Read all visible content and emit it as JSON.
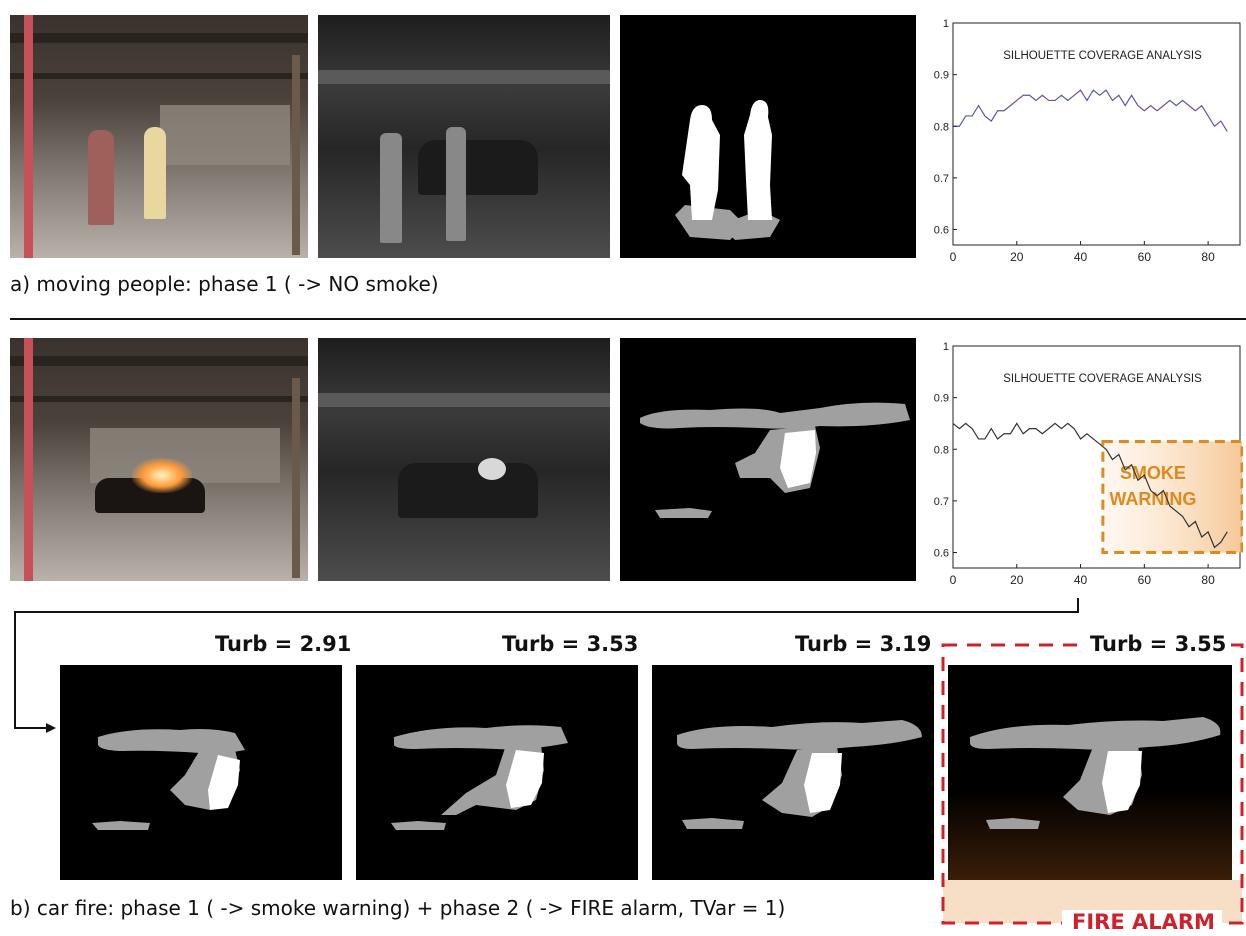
{
  "rows": {
    "a": {
      "caption": "a) moving people: phase 1 ( -> NO smoke)"
    },
    "b": {
      "caption": "b) car fire: phase 1 ( -> smoke warning) + phase 2 ( -> FIRE alarm, TVar = 1)"
    }
  },
  "turbulence": [
    {
      "label": "Turb = 2.91"
    },
    {
      "label": "Turb = 3.53"
    },
    {
      "label": "Turb = 3.19"
    },
    {
      "label": "Turb = 3.55"
    }
  ],
  "fire_alarm_label": "FIRE ALARM",
  "colors": {
    "alarm": "#d0202a",
    "warning": "#e08a1e",
    "line_a": "#5a5aa0",
    "line_b": "#333333"
  },
  "chart_data": [
    {
      "type": "line",
      "title": "SILHOUETTE COVERAGE ANALYSIS",
      "xlim": [
        0,
        90
      ],
      "ylim": [
        0.57,
        1.0
      ],
      "xticks": [
        0,
        20,
        40,
        60,
        80
      ],
      "yticks": [
        0.6,
        0.7,
        0.8,
        0.9,
        1
      ],
      "series": [
        {
          "x": [
            0,
            2,
            4,
            6,
            8,
            10,
            12,
            14,
            16,
            18,
            20,
            22,
            24,
            26,
            28,
            30,
            32,
            34,
            36,
            38,
            40,
            42,
            44,
            46,
            48,
            50,
            52,
            54,
            56,
            58,
            60,
            62,
            64,
            66,
            68,
            70,
            72,
            74,
            76,
            78,
            80,
            82,
            84,
            86
          ],
          "values": [
            0.8,
            0.8,
            0.82,
            0.82,
            0.84,
            0.82,
            0.81,
            0.83,
            0.83,
            0.84,
            0.85,
            0.86,
            0.86,
            0.85,
            0.86,
            0.85,
            0.85,
            0.86,
            0.85,
            0.86,
            0.87,
            0.85,
            0.87,
            0.86,
            0.87,
            0.85,
            0.86,
            0.84,
            0.86,
            0.84,
            0.83,
            0.84,
            0.83,
            0.84,
            0.85,
            0.84,
            0.85,
            0.84,
            0.83,
            0.84,
            0.82,
            0.8,
            0.81,
            0.79
          ]
        }
      ]
    },
    {
      "type": "line",
      "title": "SILHOUETTE COVERAGE ANALYSIS",
      "xlim": [
        0,
        90
      ],
      "ylim": [
        0.57,
        1.0
      ],
      "xticks": [
        0,
        20,
        40,
        60,
        80
      ],
      "yticks": [
        0.6,
        0.7,
        0.8,
        0.9,
        1
      ],
      "annotation": {
        "text": [
          "SMOKE",
          "WARNING"
        ],
        "x_start": 47
      },
      "series": [
        {
          "x": [
            0,
            2,
            4,
            6,
            8,
            10,
            12,
            14,
            16,
            18,
            20,
            22,
            24,
            26,
            28,
            30,
            32,
            34,
            36,
            38,
            40,
            42,
            44,
            46,
            48,
            50,
            52,
            54,
            56,
            58,
            60,
            62,
            64,
            66,
            68,
            70,
            72,
            74,
            76,
            78,
            80,
            82,
            84,
            86
          ],
          "values": [
            0.85,
            0.84,
            0.85,
            0.84,
            0.82,
            0.82,
            0.84,
            0.82,
            0.83,
            0.83,
            0.85,
            0.83,
            0.84,
            0.84,
            0.83,
            0.84,
            0.85,
            0.84,
            0.85,
            0.84,
            0.82,
            0.83,
            0.82,
            0.81,
            0.8,
            0.78,
            0.79,
            0.76,
            0.77,
            0.74,
            0.75,
            0.72,
            0.71,
            0.72,
            0.69,
            0.68,
            0.67,
            0.65,
            0.66,
            0.63,
            0.64,
            0.61,
            0.62,
            0.64
          ]
        }
      ]
    }
  ]
}
